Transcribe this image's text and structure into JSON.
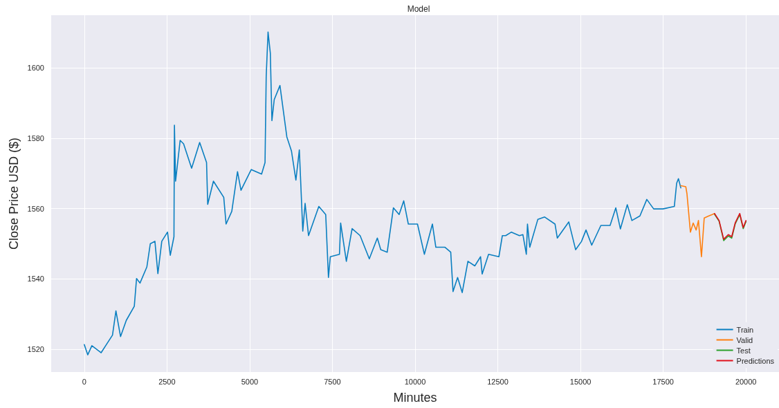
{
  "chart_data": {
    "type": "line",
    "title": "Model",
    "xlabel": "Minutes",
    "ylabel": "Close Price USD ($)",
    "xlim": [
      -1000,
      21000
    ],
    "xticks": [
      0,
      2500,
      5000,
      7500,
      10000,
      12500,
      15000,
      17500,
      20000
    ],
    "ylim": [
      1513.5,
      1615
    ],
    "yticks": [
      1520,
      1540,
      1560,
      1580,
      1600
    ],
    "grid": true,
    "legend": "bottom right",
    "series": [
      {
        "name": "Train",
        "color": "#0a7fc0",
        "x": [
          0,
          105,
          230,
          510,
          680,
          853,
          957,
          1096,
          1270,
          1512,
          1580,
          1684,
          1892,
          1996,
          2135,
          2225,
          2343,
          2516,
          2600,
          2711,
          2725,
          2760,
          2898,
          3002,
          3245,
          3488,
          3696,
          3731,
          3904,
          4216,
          4286,
          4459,
          4632,
          4737,
          4910,
          5048,
          5360,
          5464,
          5499,
          5555,
          5624,
          5672,
          5742,
          5915,
          6019,
          6123,
          6262,
          6397,
          6501,
          6605,
          6675,
          6779,
          7090,
          7298,
          7381,
          7437,
          7714,
          7749,
          7922,
          8096,
          8338,
          8616,
          8858,
          8962,
          9157,
          9344,
          9517,
          9656,
          9795,
          10072,
          10280,
          10523,
          10627,
          10904,
          11077,
          11147,
          11285,
          11424,
          11597,
          11805,
          11979,
          12027,
          12221,
          12533,
          12637,
          12738,
          12911,
          13154,
          13258,
          13362,
          13397,
          13466,
          13709,
          13917,
          14229,
          14299,
          14645,
          14853,
          15027,
          15166,
          15339,
          15616,
          15894,
          16067,
          16206,
          16414,
          16553,
          16796,
          17004,
          17212,
          17490,
          17836,
          17906,
          17961,
          18031
        ],
        "values": [
          1521.3,
          1518.4,
          1521,
          1519,
          1521.5,
          1524,
          1530.9,
          1523.6,
          1528.2,
          1532.2,
          1540.1,
          1538.8,
          1543.4,
          1550,
          1550.7,
          1541.5,
          1550.7,
          1553.3,
          1546.7,
          1552,
          1583.7,
          1567.8,
          1579.4,
          1578.4,
          1571.5,
          1578.8,
          1573.1,
          1561.2,
          1567.8,
          1563.2,
          1555.6,
          1559.2,
          1570.5,
          1565.2,
          1568.5,
          1571.1,
          1569.8,
          1573.1,
          1597.6,
          1610.2,
          1604.2,
          1585,
          1591,
          1595,
          1587.7,
          1580.4,
          1576.4,
          1568.1,
          1576.7,
          1553.6,
          1561.5,
          1552.3,
          1560.6,
          1558.3,
          1540.4,
          1546.3,
          1547,
          1555.9,
          1545,
          1554.3,
          1552.3,
          1545.7,
          1551.6,
          1548.3,
          1547.6,
          1560.2,
          1558.3,
          1562.2,
          1555.6,
          1555.6,
          1547,
          1555.6,
          1549,
          1549,
          1547.6,
          1536.4,
          1540.4,
          1536.1,
          1545,
          1543.7,
          1546.3,
          1541.4,
          1547,
          1546.3,
          1552.3,
          1552.3,
          1553.3,
          1552.3,
          1552.6,
          1547,
          1555.6,
          1549,
          1556.9,
          1557.6,
          1555.6,
          1551.6,
          1556.2,
          1548.3,
          1550.6,
          1553.9,
          1549.6,
          1555.2,
          1555.2,
          1560.2,
          1554.2,
          1561.1,
          1556.6,
          1557.9,
          1562.6,
          1559.9,
          1559.9,
          1560.6,
          1567.2,
          1568.5,
          1565.9
        ]
      },
      {
        "name": "Valid",
        "color": "#ff7f0e",
        "x": [
          18031,
          18183,
          18218,
          18322,
          18406,
          18496,
          18565,
          18656,
          18739,
          18877,
          18981,
          19051
        ],
        "values": [
          1566.5,
          1566.2,
          1564.2,
          1553.3,
          1555.9,
          1553.9,
          1556.6,
          1546.3,
          1557.3,
          1557.9,
          1558.3,
          1558.6
        ]
      },
      {
        "name": "Test",
        "color": "#2ca02c",
        "x": [
          19051,
          19189,
          19328,
          19467,
          19571,
          19675,
          19814,
          19918,
          20002
        ],
        "values": [
          1558.4,
          1556.4,
          1550.9,
          1552.2,
          1551.6,
          1555.6,
          1558.3,
          1554.3,
          1556.3
        ]
      },
      {
        "name": "Predictions",
        "color": "#e0101c",
        "x": [
          19051,
          19189,
          19328,
          19467,
          19571,
          19675,
          19814,
          19918,
          20002
        ],
        "values": [
          1558.6,
          1556.6,
          1551.3,
          1552.6,
          1552,
          1555.9,
          1558.6,
          1554.6,
          1556.6
        ]
      }
    ]
  }
}
